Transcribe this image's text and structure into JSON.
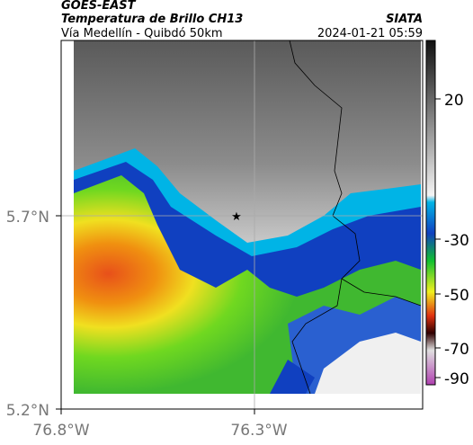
{
  "header": {
    "satellite": "GOES-EAST",
    "product": "Temperatura de Brillo CH13",
    "region": "Vía Medellín - Quibdó 50km",
    "agency": "SIATA",
    "datetime": "2024-01-21 05:59"
  },
  "axes": {
    "y_labels": [
      "5.7°N",
      "5.2°N"
    ],
    "x_labels": [
      "76.8°W",
      "76.3°W"
    ]
  },
  "colorbar": {
    "ticks": [
      "20",
      "-30",
      "-50",
      "-70",
      "-90"
    ]
  }
}
